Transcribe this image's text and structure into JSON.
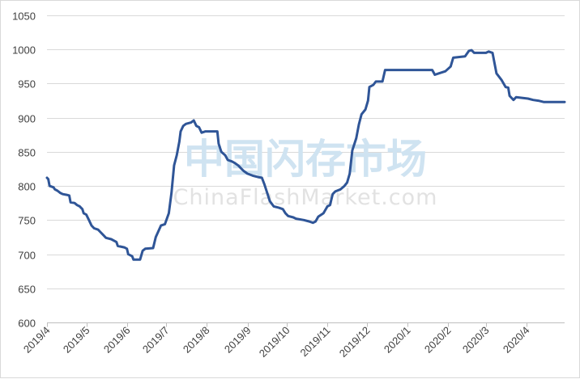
{
  "chart_data": {
    "type": "line",
    "title": "",
    "xlabel": "",
    "ylabel": "",
    "ylim": [
      600,
      1050
    ],
    "yticks": [
      600,
      650,
      700,
      750,
      800,
      850,
      900,
      950,
      1000,
      1050
    ],
    "xlim": [
      "2019-04-01",
      "2020-04-30"
    ],
    "xticks": [
      {
        "date": "2019-04-01",
        "label": "2019/4"
      },
      {
        "date": "2019-05-01",
        "label": "2019/5"
      },
      {
        "date": "2019-06-01",
        "label": "2019/6"
      },
      {
        "date": "2019-07-01",
        "label": "2019/7"
      },
      {
        "date": "2019-08-01",
        "label": "2019/8"
      },
      {
        "date": "2019-09-01",
        "label": "2019/9"
      },
      {
        "date": "2019-10-01",
        "label": "2019/10"
      },
      {
        "date": "2019-11-01",
        "label": "2019/11"
      },
      {
        "date": "2019-12-01",
        "label": "2019/12"
      },
      {
        "date": "2020-01-01",
        "label": "2020/1"
      },
      {
        "date": "2020-02-01",
        "label": "2020/2"
      },
      {
        "date": "2020-03-01",
        "label": "2020/3"
      },
      {
        "date": "2020-04-01",
        "label": "2020/4"
      }
    ],
    "grid": true,
    "legend": "none",
    "line_color": "#2f5597",
    "grid_color": "#d9d9d9",
    "series": [
      {
        "points": [
          [
            "2019-04-01",
            812
          ],
          [
            "2019-04-02",
            810
          ],
          [
            "2019-04-03",
            800
          ],
          [
            "2019-04-06",
            798
          ],
          [
            "2019-04-07",
            795
          ],
          [
            "2019-04-09",
            793
          ],
          [
            "2019-04-11",
            790
          ],
          [
            "2019-04-13",
            788
          ],
          [
            "2019-04-16",
            787
          ],
          [
            "2019-04-18",
            786
          ],
          [
            "2019-04-19",
            776
          ],
          [
            "2019-04-22",
            775
          ],
          [
            "2019-04-24",
            772
          ],
          [
            "2019-04-26",
            770
          ],
          [
            "2019-04-28",
            766
          ],
          [
            "2019-04-29",
            760
          ],
          [
            "2019-05-01",
            758
          ],
          [
            "2019-05-03",
            750
          ],
          [
            "2019-05-05",
            742
          ],
          [
            "2019-05-07",
            738
          ],
          [
            "2019-05-10",
            736
          ],
          [
            "2019-05-12",
            732
          ],
          [
            "2019-05-14",
            728
          ],
          [
            "2019-05-16",
            724
          ],
          [
            "2019-05-20",
            722
          ],
          [
            "2019-05-24",
            718
          ],
          [
            "2019-05-25",
            712
          ],
          [
            "2019-05-30",
            710
          ],
          [
            "2019-06-01",
            708
          ],
          [
            "2019-06-02",
            700
          ],
          [
            "2019-06-05",
            697
          ],
          [
            "2019-06-06",
            692
          ],
          [
            "2019-06-11",
            692
          ],
          [
            "2019-06-13",
            705
          ],
          [
            "2019-06-15",
            708
          ],
          [
            "2019-06-21",
            709
          ],
          [
            "2019-06-23",
            725
          ],
          [
            "2019-06-27",
            742
          ],
          [
            "2019-06-30",
            744
          ],
          [
            "2019-07-03",
            760
          ],
          [
            "2019-07-05",
            790
          ],
          [
            "2019-07-07",
            830
          ],
          [
            "2019-07-09",
            845
          ],
          [
            "2019-07-11",
            865
          ],
          [
            "2019-07-12",
            880
          ],
          [
            "2019-07-14",
            888
          ],
          [
            "2019-07-16",
            891
          ],
          [
            "2019-07-20",
            893
          ],
          [
            "2019-07-22",
            896
          ],
          [
            "2019-07-24",
            888
          ],
          [
            "2019-07-26",
            886
          ],
          [
            "2019-07-28",
            878
          ],
          [
            "2019-07-31",
            880
          ],
          [
            "2019-08-09",
            880
          ],
          [
            "2019-08-10",
            862
          ],
          [
            "2019-08-12",
            850
          ],
          [
            "2019-08-15",
            845
          ],
          [
            "2019-08-17",
            838
          ],
          [
            "2019-08-20",
            836
          ],
          [
            "2019-08-22",
            834
          ],
          [
            "2019-08-25",
            830
          ],
          [
            "2019-08-27",
            826
          ],
          [
            "2019-08-29",
            822
          ],
          [
            "2019-09-01",
            818
          ],
          [
            "2019-09-05",
            815
          ],
          [
            "2019-09-09",
            813
          ],
          [
            "2019-09-12",
            812
          ],
          [
            "2019-09-14",
            802
          ],
          [
            "2019-09-16",
            790
          ],
          [
            "2019-09-18",
            778
          ],
          [
            "2019-09-21",
            770
          ],
          [
            "2019-09-25",
            768
          ],
          [
            "2019-09-28",
            766
          ],
          [
            "2019-09-30",
            760
          ],
          [
            "2019-10-02",
            756
          ],
          [
            "2019-10-06",
            754
          ],
          [
            "2019-10-08",
            752
          ],
          [
            "2019-10-14",
            750
          ],
          [
            "2019-10-18",
            748
          ],
          [
            "2019-10-21",
            746
          ],
          [
            "2019-10-23",
            748
          ],
          [
            "2019-10-25",
            755
          ],
          [
            "2019-10-29",
            760
          ],
          [
            "2019-11-01",
            770
          ],
          [
            "2019-11-03",
            772
          ],
          [
            "2019-11-05",
            788
          ],
          [
            "2019-11-07",
            792
          ],
          [
            "2019-11-11",
            795
          ],
          [
            "2019-11-14",
            800
          ],
          [
            "2019-11-16",
            805
          ],
          [
            "2019-11-18",
            818
          ],
          [
            "2019-11-20",
            852
          ],
          [
            "2019-11-23",
            870
          ],
          [
            "2019-11-25",
            890
          ],
          [
            "2019-11-27",
            905
          ],
          [
            "2019-11-30",
            912
          ],
          [
            "2019-12-02",
            925
          ],
          [
            "2019-12-03",
            945
          ],
          [
            "2019-12-06",
            948
          ],
          [
            "2019-12-08",
            953
          ],
          [
            "2019-12-13",
            953
          ],
          [
            "2019-12-15",
            970
          ],
          [
            "2020-01-20",
            970
          ],
          [
            "2020-01-22",
            963
          ],
          [
            "2020-01-25",
            965
          ],
          [
            "2020-01-30",
            968
          ],
          [
            "2020-02-03",
            975
          ],
          [
            "2020-02-05",
            988
          ],
          [
            "2020-02-14",
            990
          ],
          [
            "2020-02-17",
            998
          ],
          [
            "2020-02-19",
            999
          ],
          [
            "2020-02-21",
            995
          ],
          [
            "2020-03-01",
            995
          ],
          [
            "2020-03-03",
            997
          ],
          [
            "2020-03-06",
            995
          ],
          [
            "2020-03-09",
            965
          ],
          [
            "2020-03-13",
            955
          ],
          [
            "2020-03-16",
            945
          ],
          [
            "2020-03-18",
            944
          ],
          [
            "2020-03-19",
            932
          ],
          [
            "2020-03-22",
            926
          ],
          [
            "2020-03-24",
            930
          ],
          [
            "2020-04-02",
            928
          ],
          [
            "2020-04-06",
            926
          ],
          [
            "2020-04-10",
            925
          ],
          [
            "2020-04-14",
            923
          ],
          [
            "2020-04-30",
            923
          ]
        ]
      }
    ]
  },
  "watermark": {
    "cn": "中国闪存市场",
    "en": "ChinaFlashMarket.com"
  }
}
